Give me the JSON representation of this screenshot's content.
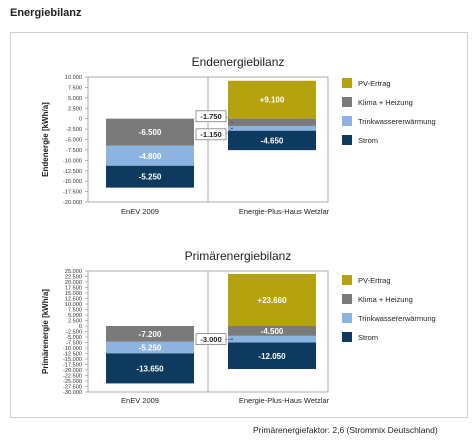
{
  "page": {
    "heading": "Energiebilanz",
    "footnote": "Primärenergiefaktor: 2,6 (Strommix Deutschland)"
  },
  "colors": {
    "PV-Ertrag": "#b5a20f",
    "Klima + Heizung": "#7a7a7a",
    "Trinkwassererwärmung": "#8db3e0",
    "Strom": "#0f3a5f"
  },
  "chart_data": [
    {
      "type": "bar",
      "stacked": true,
      "title": "Endenergiebilanz",
      "ylabel": "Endenergie [kWh/a]",
      "ylim": [
        -20000,
        10000
      ],
      "ytick_step": 2500,
      "yticks": [
        "10.000",
        "7.500",
        "5.000",
        "2.500",
        "0",
        "-2.500",
        "-5.000",
        "-7.500",
        "-10.000",
        "-12.500",
        "-15.000",
        "-17.500",
        "-20.000"
      ],
      "categories": [
        "EnEV 2009",
        "Energie-Plus-Haus Wetzlar"
      ],
      "series": [
        {
          "name": "PV-Ertrag",
          "values": [
            0,
            9100
          ],
          "labels": [
            "",
            "+9.100"
          ]
        },
        {
          "name": "Klima + Heizung",
          "values": [
            -6500,
            -1750
          ],
          "labels": [
            "-6.500",
            "-1.750"
          ]
        },
        {
          "name": "Trinkwassererwärmung",
          "values": [
            -4800,
            -1150
          ],
          "labels": [
            "-4.800",
            "-1.150"
          ]
        },
        {
          "name": "Strom",
          "values": [
            -5250,
            -4650
          ],
          "labels": [
            "-5.250",
            "-4.650"
          ]
        }
      ],
      "legend": [
        "PV-Ertrag",
        "Klima + Heizung",
        "Trinkwassererwärmung",
        "Strom"
      ],
      "legend_position": "right",
      "grid": false
    },
    {
      "type": "bar",
      "stacked": true,
      "title": "Primärenergiebilanz",
      "ylabel": "Primärenergie [kWh/a]",
      "ylim": [
        -30000,
        25000
      ],
      "ytick_step": 2500,
      "yticks": [
        "25.000",
        "22.500",
        "20.000",
        "17.500",
        "15.000",
        "12.500",
        "10.000",
        "7.500",
        "5.000",
        "2.500",
        "0",
        "-2.500",
        "-5.000",
        "-7.500",
        "-10.000",
        "-12.500",
        "-15.000",
        "-17.500",
        "-20.000",
        "-22.500",
        "-25.000",
        "-27.500",
        "-30.000"
      ],
      "categories": [
        "EnEV 2009",
        "Energie-Plus-Haus Wetzlar"
      ],
      "series": [
        {
          "name": "PV-Ertrag",
          "values": [
            0,
            23660
          ],
          "labels": [
            "",
            "+23.660"
          ]
        },
        {
          "name": "Klima + Heizung",
          "values": [
            -7200,
            -4500
          ],
          "labels": [
            "-7.200",
            "-4.500"
          ]
        },
        {
          "name": "Trinkwassererwärmung",
          "values": [
            -5250,
            -3000
          ],
          "labels": [
            "-5.250",
            "-3.000"
          ]
        },
        {
          "name": "Strom",
          "values": [
            -13650,
            -12050
          ],
          "labels": [
            "-13.650",
            "-12.050"
          ]
        }
      ],
      "legend": [
        "PV-Ertrag",
        "Klima + Heizung",
        "Trinkwassererwärmung",
        "Strom"
      ],
      "legend_position": "right",
      "grid": false
    }
  ]
}
